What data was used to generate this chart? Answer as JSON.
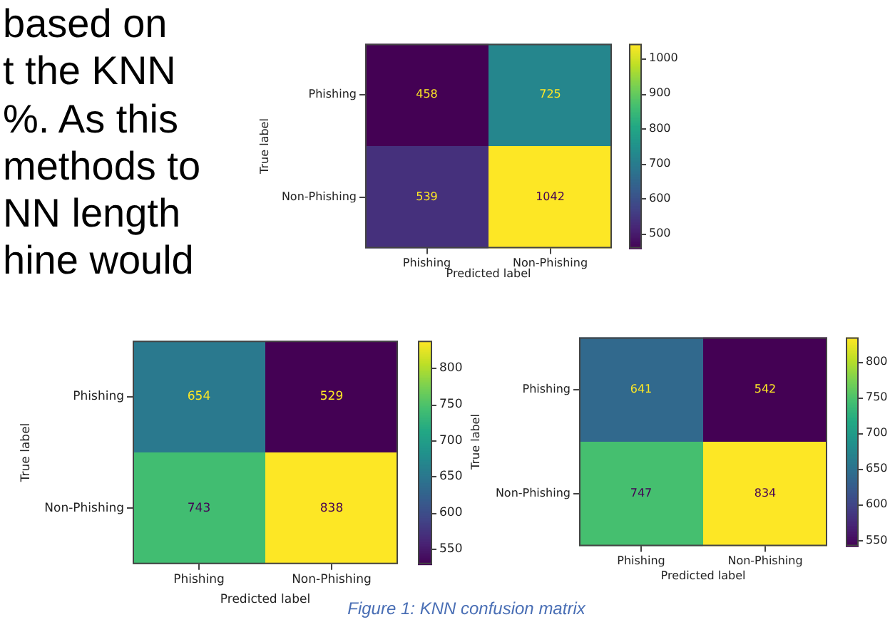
{
  "chart_data": [
    {
      "type": "heatmap",
      "xlabel": "Predicted label",
      "ylabel": "True label",
      "categories": [
        "Phishing",
        "Non-Phishing"
      ],
      "y_categories": [
        "Phishing",
        "Non-Phishing"
      ],
      "cells": [
        [
          458,
          725
        ],
        [
          539,
          1042
        ]
      ],
      "clim": [
        458,
        1042
      ],
      "cticks": [
        500,
        600,
        700,
        800,
        900,
        1000
      ],
      "data_labels": true,
      "annotations": [
        "based on",
        "t the KNN",
        "%. As this",
        "methods to",
        "NN length",
        "hine would"
      ]
    },
    {
      "type": "heatmap",
      "xlabel": "Predicted label",
      "ylabel": "True label",
      "categories": [
        "Phishing",
        "Non-Phishing"
      ],
      "y_categories": [
        "Phishing",
        "Non-Phishing"
      ],
      "cells": [
        [
          654,
          529
        ],
        [
          743,
          838
        ]
      ],
      "clim": [
        529,
        838
      ],
      "cticks": [
        550,
        600,
        650,
        700,
        750,
        800
      ],
      "data_labels": true
    },
    {
      "type": "heatmap",
      "xlabel": "Predicted label",
      "ylabel": "True label",
      "categories": [
        "Phishing",
        "Non-Phishing"
      ],
      "y_categories": [
        "Phishing",
        "Non-Phishing"
      ],
      "cells": [
        [
          641,
          542
        ],
        [
          747,
          834
        ]
      ],
      "clim": [
        542,
        834
      ],
      "cticks": [
        550,
        600,
        650,
        700,
        750,
        800
      ],
      "data_labels": true,
      "annotations": [
        "Figure 1: KNN confusion matrix"
      ]
    }
  ]
}
